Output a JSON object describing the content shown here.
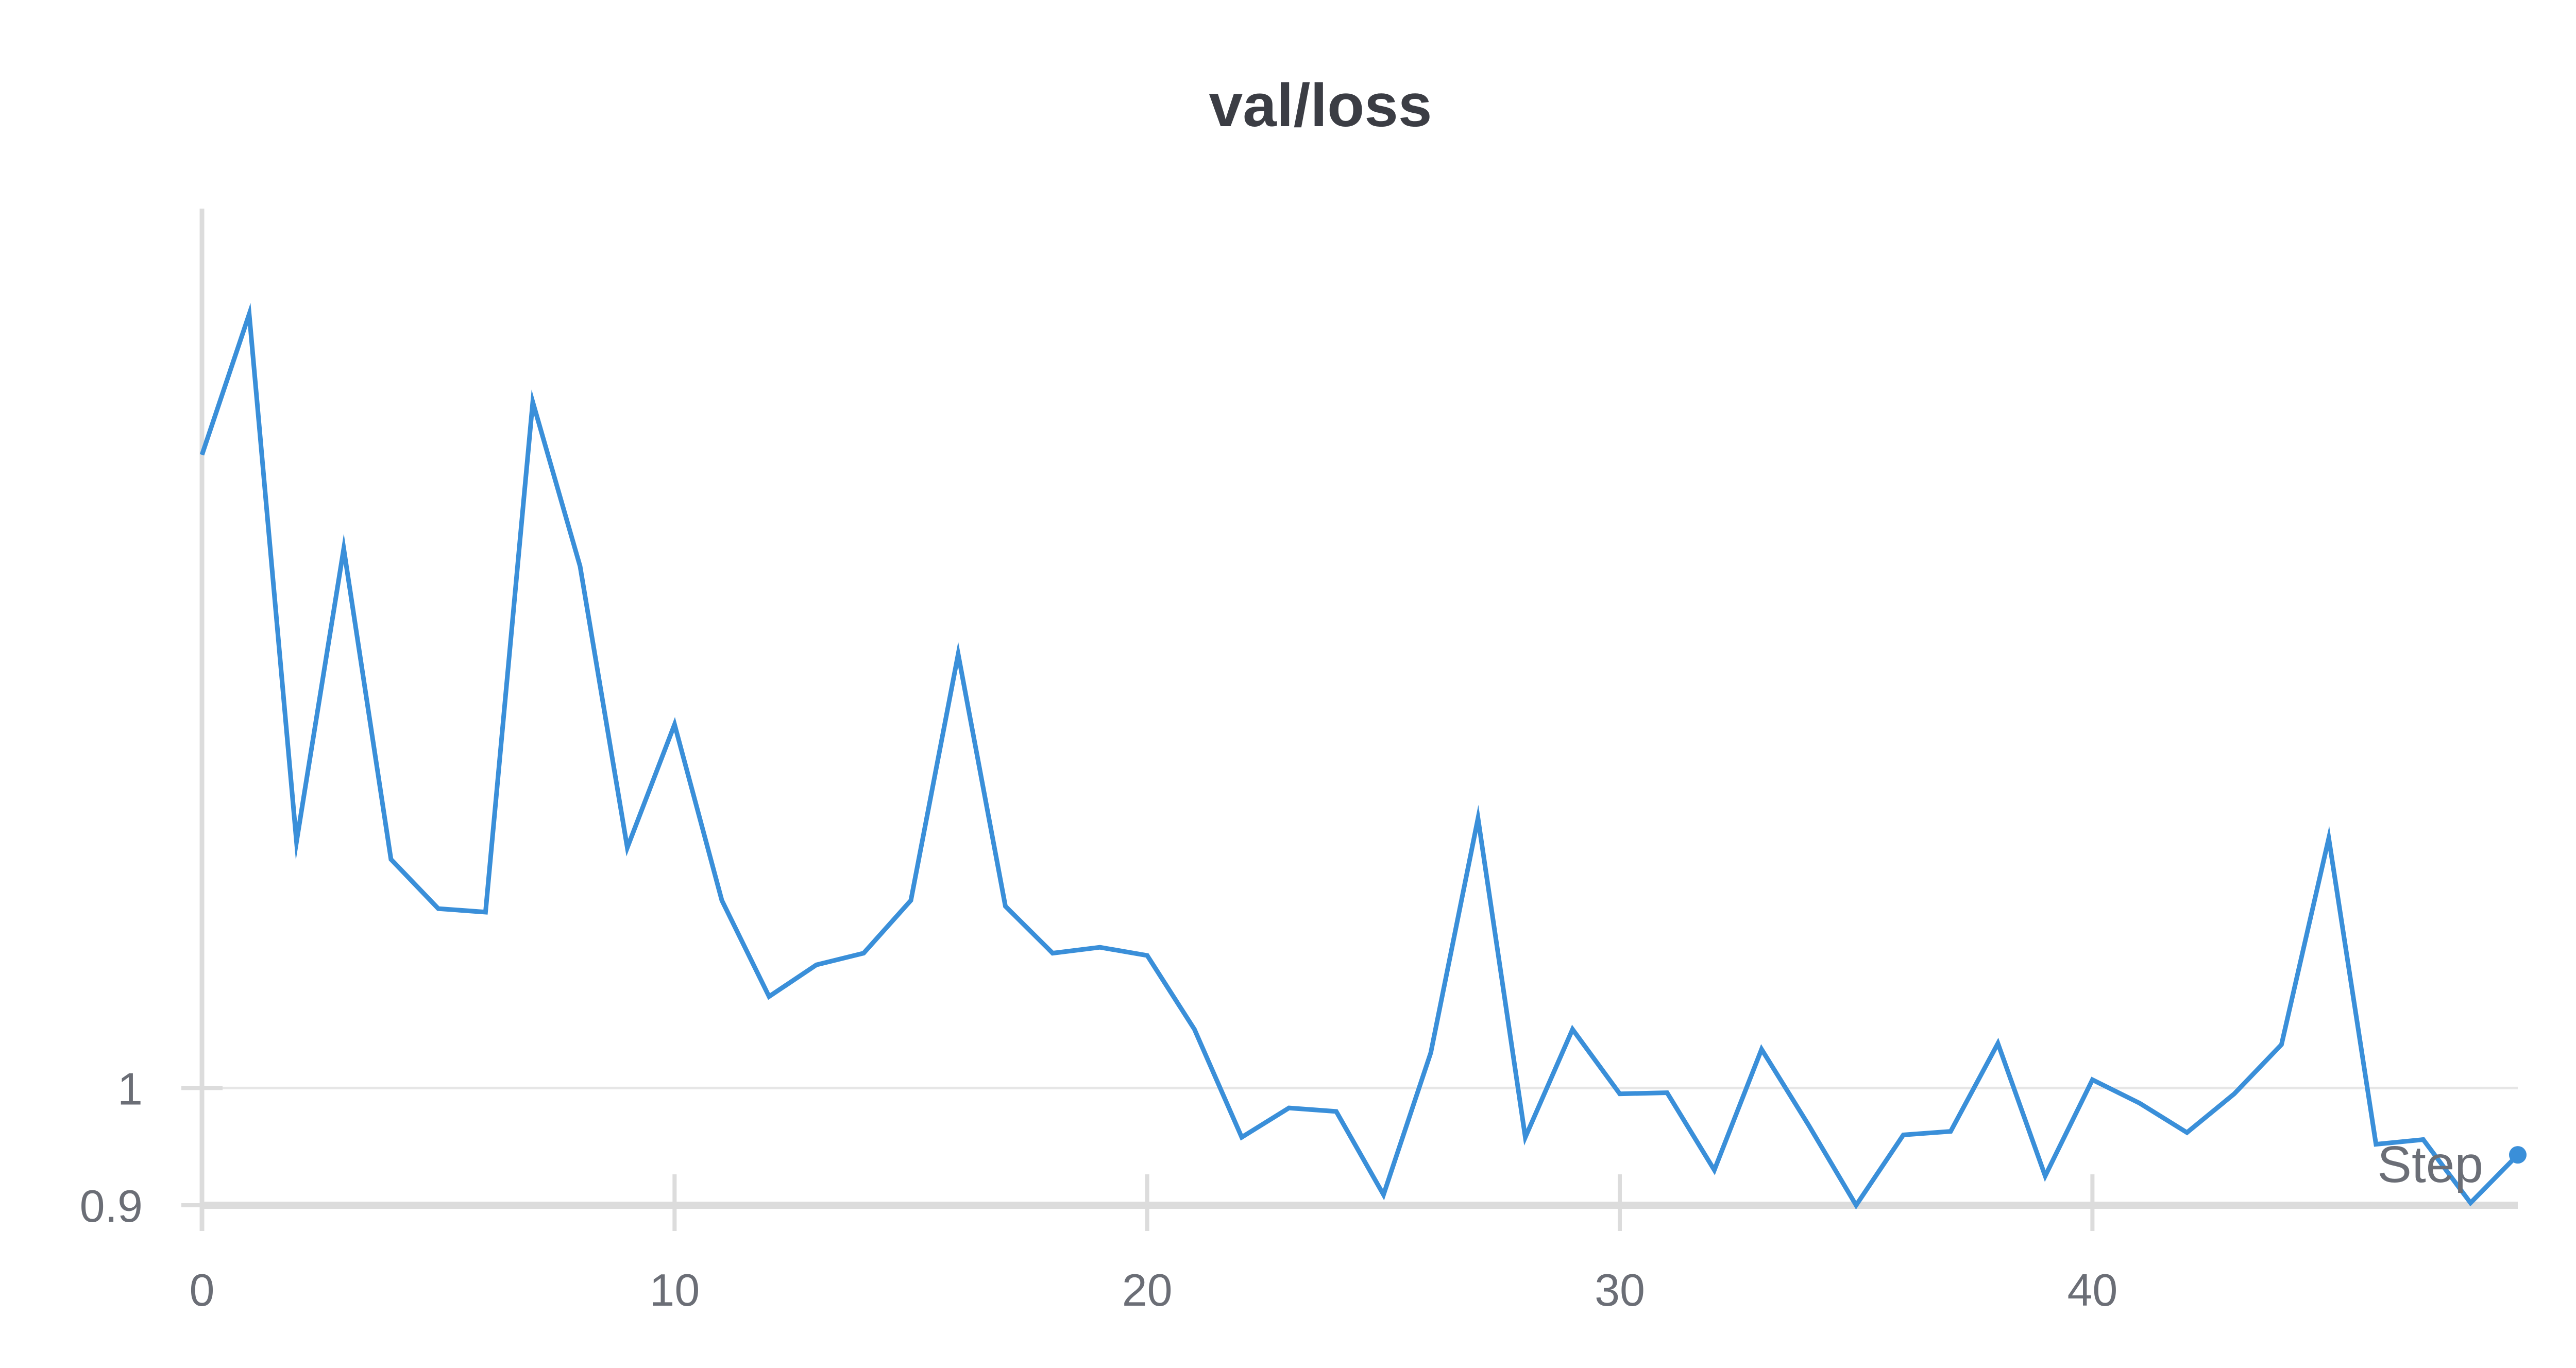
{
  "chart_data": {
    "type": "line",
    "title": "val/loss",
    "xlabel": "Step",
    "ylabel": "",
    "xlim": [
      0,
      49
    ],
    "ylim": [
      0.9,
      1.75
    ],
    "x_ticks": [
      0,
      10,
      20,
      30,
      40
    ],
    "y_ticks": [
      0.9,
      1
    ],
    "y_tick_labels": [
      "0.9",
      "1"
    ],
    "grid": true,
    "legend": "none",
    "series": [
      {
        "color": "#3a8fd9",
        "x": [
          0,
          1,
          2,
          3,
          4,
          5,
          6,
          7,
          8,
          9,
          10,
          11,
          12,
          13,
          14,
          15,
          16,
          17,
          18,
          19,
          20,
          21,
          22,
          23,
          24,
          25,
          26,
          27,
          28,
          29,
          30,
          31,
          32,
          33,
          34,
          35,
          36,
          37,
          38,
          39,
          40,
          41,
          42,
          43,
          44,
          45,
          46,
          47,
          48,
          49
        ],
        "y": [
          1.54,
          1.66,
          1.21,
          1.46,
          1.195,
          1.153,
          1.15,
          1.585,
          1.445,
          1.205,
          1.31,
          1.16,
          1.078,
          1.105,
          1.115,
          1.16,
          1.37,
          1.155,
          1.115,
          1.12,
          1.113,
          1.05,
          0.958,
          0.983,
          0.98,
          0.909,
          1.03,
          1.23,
          0.958,
          1.05,
          0.995,
          0.996,
          0.93,
          1.033,
          0.968,
          0.9,
          0.96,
          0.963,
          1.038,
          0.925,
          1.007,
          0.987,
          0.962,
          0.995,
          1.037,
          1.213,
          0.952,
          0.956,
          0.902,
          0.943
        ]
      }
    ]
  }
}
